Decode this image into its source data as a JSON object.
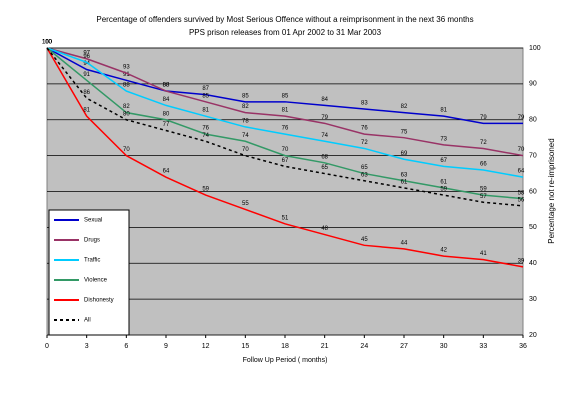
{
  "chart_data": {
    "type": "line",
    "title": "Percentage of offenders survived by Most Serious Offence without a reimprisonment in the next 36 months",
    "subtitle": "PPS prison releases from 01 Apr 2002 to 31 Mar 2003",
    "x_label": "Follow Up Period ( months)",
    "y_label": "Percentage not re-imprisoned",
    "x": [
      0,
      3,
      6,
      9,
      12,
      15,
      18,
      21,
      24,
      27,
      30,
      33,
      36
    ],
    "xlim": [
      0,
      36
    ],
    "xticks": [
      0,
      3,
      6,
      9,
      12,
      15,
      18,
      21,
      24,
      27,
      30,
      33,
      36
    ],
    "ylim": [
      20,
      100
    ],
    "yticks": [
      20,
      30,
      40,
      50,
      60,
      70,
      80,
      90,
      100
    ],
    "y_axis_side": "right",
    "grid": true,
    "plot_background": "#c0c0c0",
    "series": [
      {
        "name": "Sexual",
        "color": "#0000cc",
        "line_style": "solid",
        "values": [
          100,
          94,
          91,
          88,
          87,
          85,
          85,
          84,
          83,
          82,
          81,
          79,
          79
        ]
      },
      {
        "name": "Drugs",
        "color": "#993366",
        "line_style": "solid",
        "values": [
          100,
          97,
          93,
          88,
          85,
          82,
          81,
          79,
          76,
          75,
          73,
          72,
          70
        ]
      },
      {
        "name": "Traffic",
        "color": "#00ccff",
        "line_style": "solid",
        "values": [
          100,
          96,
          88,
          84,
          81,
          78,
          76,
          74,
          72,
          69,
          67,
          66,
          64
        ]
      },
      {
        "name": "Violence",
        "color": "#339966",
        "line_style": "solid",
        "values": [
          100,
          91,
          82,
          80,
          76,
          74,
          70,
          68,
          65,
          63,
          61,
          59,
          58
        ]
      },
      {
        "name": "Dishonesty",
        "color": "#ff0000",
        "line_style": "solid",
        "values": [
          100,
          81,
          70,
          64,
          59,
          55,
          51,
          48,
          45,
          44,
          42,
          41,
          39
        ]
      },
      {
        "name": "All",
        "color": "#000000",
        "line_style": "dashed",
        "values": [
          100,
          86,
          80,
          77,
          74,
          70,
          67,
          65,
          63,
          61,
          59,
          57,
          56
        ]
      }
    ]
  }
}
